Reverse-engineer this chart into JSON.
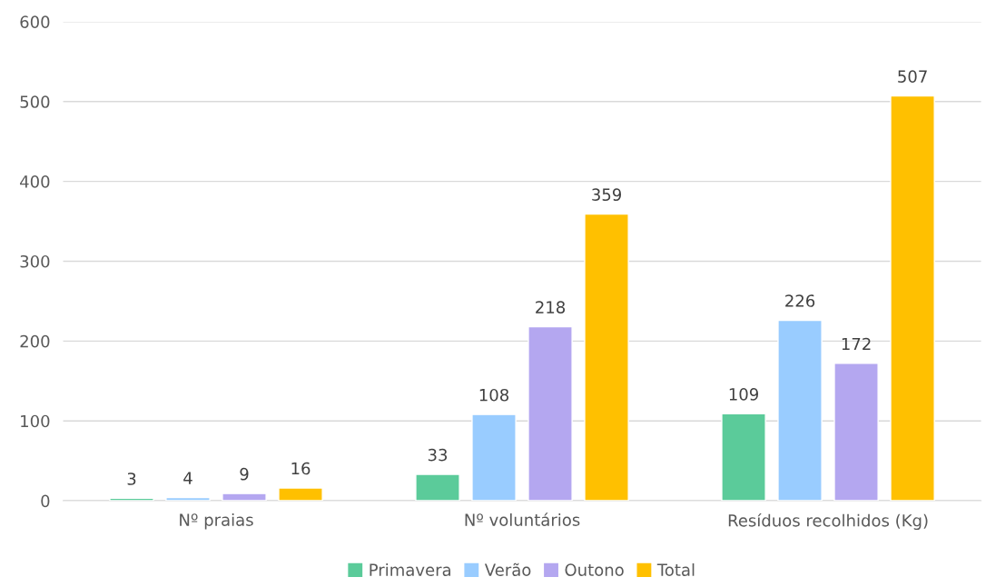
{
  "chart_data": {
    "type": "bar",
    "categories": [
      "Nº praias",
      "Nº voluntários",
      "Resíduos recolhidos (Kg)"
    ],
    "series": [
      {
        "name": "Primavera",
        "color": "#5bcb9a",
        "values": [
          3,
          33,
          109
        ]
      },
      {
        "name": "Verão",
        "color": "#99ccff",
        "values": [
          4,
          108,
          226
        ]
      },
      {
        "name": "Outono",
        "color": "#b4a7f0",
        "values": [
          9,
          218,
          172
        ]
      },
      {
        "name": "Total",
        "color": "#ffc000",
        "values": [
          16,
          359,
          507
        ]
      }
    ],
    "ylim": [
      0,
      600
    ],
    "yticks": [
      0,
      100,
      200,
      300,
      400,
      500,
      600
    ],
    "grid": "y",
    "legend": "bottom",
    "data_labels": true
  }
}
